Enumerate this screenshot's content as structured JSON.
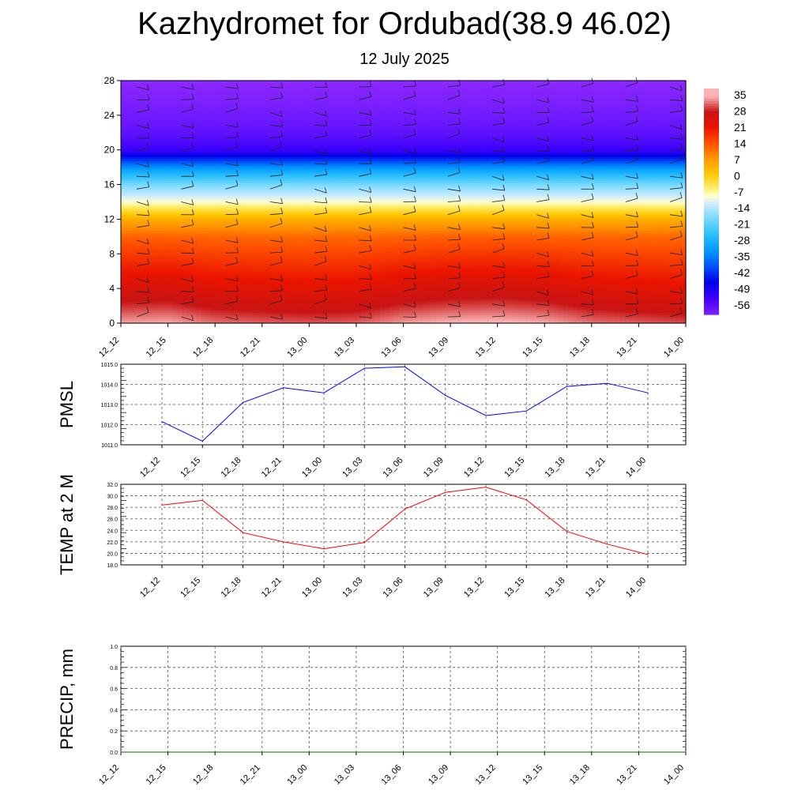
{
  "header": {
    "title": "Kazhydromet for Ordubad(38.9 46.02)",
    "subtitle": "12 July 2025"
  },
  "chart_data": [
    {
      "type": "heatmap",
      "name": "temperature-cross-section",
      "title": "",
      "ylabel": "",
      "ylim": [
        0,
        28
      ],
      "yticks": [
        "0",
        "4",
        "8",
        "12",
        "16",
        "20",
        "24",
        "28"
      ],
      "x": [
        "12_12",
        "12_15",
        "12_18",
        "12_21",
        "13_00",
        "13_03",
        "13_06",
        "13_09",
        "13_12",
        "13_15",
        "13_18",
        "13_21",
        "14_00"
      ],
      "colorbar_labels": [
        "35",
        "28",
        "21",
        "14",
        "7",
        "0",
        "-7",
        "-14",
        "-21",
        "-28",
        "-35",
        "-42",
        "-49",
        "-56"
      ],
      "profile": {
        "levels": [
          0,
          2,
          4,
          6,
          8,
          10,
          12,
          14,
          16,
          18,
          20,
          22,
          24,
          28
        ],
        "temps": [
          33,
          28,
          24,
          20,
          16,
          12,
          4,
          -10,
          -20,
          -35,
          -56,
          -60,
          -62,
          -65
        ]
      },
      "surface_temps": [
        28.4,
        29.2,
        23.6,
        22.0,
        20.8,
        21.9,
        27.7,
        30.6,
        31.5,
        29.3,
        23.8,
        21.6,
        19.8
      ],
      "wind_barbs": true,
      "grid": false
    },
    {
      "type": "line",
      "name": "PMSL",
      "ylabel": "PMSL",
      "ylim": [
        1011.0,
        1015.0
      ],
      "yticks": [
        "1011.0",
        "1012.0",
        "1013.0",
        "1014.0",
        "1015.0"
      ],
      "categories": [
        "12_12",
        "12_15",
        "12_18",
        "12_21",
        "13_00",
        "13_03",
        "13_06",
        "13_09",
        "13_12",
        "13_15",
        "13_18",
        "13_21",
        "14_00"
      ],
      "series": [
        {
          "values": [
            1012.15,
            1011.18,
            1013.1,
            1013.83,
            1013.58,
            1014.8,
            1014.87,
            1013.45,
            1012.45,
            1012.68,
            1013.9,
            1014.05,
            1013.58
          ]
        }
      ],
      "color": "#0000ff",
      "grid": true
    },
    {
      "type": "line",
      "name": "TEMP at 2 M",
      "ylabel": "TEMP at 2 M",
      "ylim": [
        18.0,
        32.0
      ],
      "yticks": [
        "18.0",
        "20.0",
        "22.0",
        "24.0",
        "26.0",
        "28.0",
        "30.0",
        "32.0"
      ],
      "categories": [
        "12_12",
        "12_15",
        "12_18",
        "12_21",
        "13_00",
        "13_03",
        "13_06",
        "13_09",
        "13_12",
        "13_15",
        "13_18",
        "13_21",
        "14_00"
      ],
      "series": [
        {
          "values": [
            28.4,
            29.2,
            23.6,
            22.0,
            20.8,
            21.9,
            27.7,
            30.6,
            31.5,
            29.3,
            23.8,
            21.6,
            19.8
          ]
        }
      ],
      "color": "#ff0000",
      "grid": true
    },
    {
      "type": "line",
      "name": "PRECIP, mm",
      "ylabel": "PRECIP, mm",
      "ylim": [
        0.0,
        1.0
      ],
      "yticks": [
        "0.0",
        "0.2",
        "0.4",
        "0.6",
        "0.8",
        "1.0"
      ],
      "categories": [
        "12_12",
        "12_15",
        "12_18",
        "12_21",
        "13_00",
        "13_03",
        "13_06",
        "13_09",
        "13_12",
        "13_15",
        "13_18",
        "13_21",
        "14_00"
      ],
      "series": [
        {
          "values": [
            0,
            0,
            0,
            0,
            0,
            0,
            0,
            0,
            0,
            0,
            0,
            0,
            0
          ]
        }
      ],
      "color": "#006400",
      "grid": true
    }
  ]
}
